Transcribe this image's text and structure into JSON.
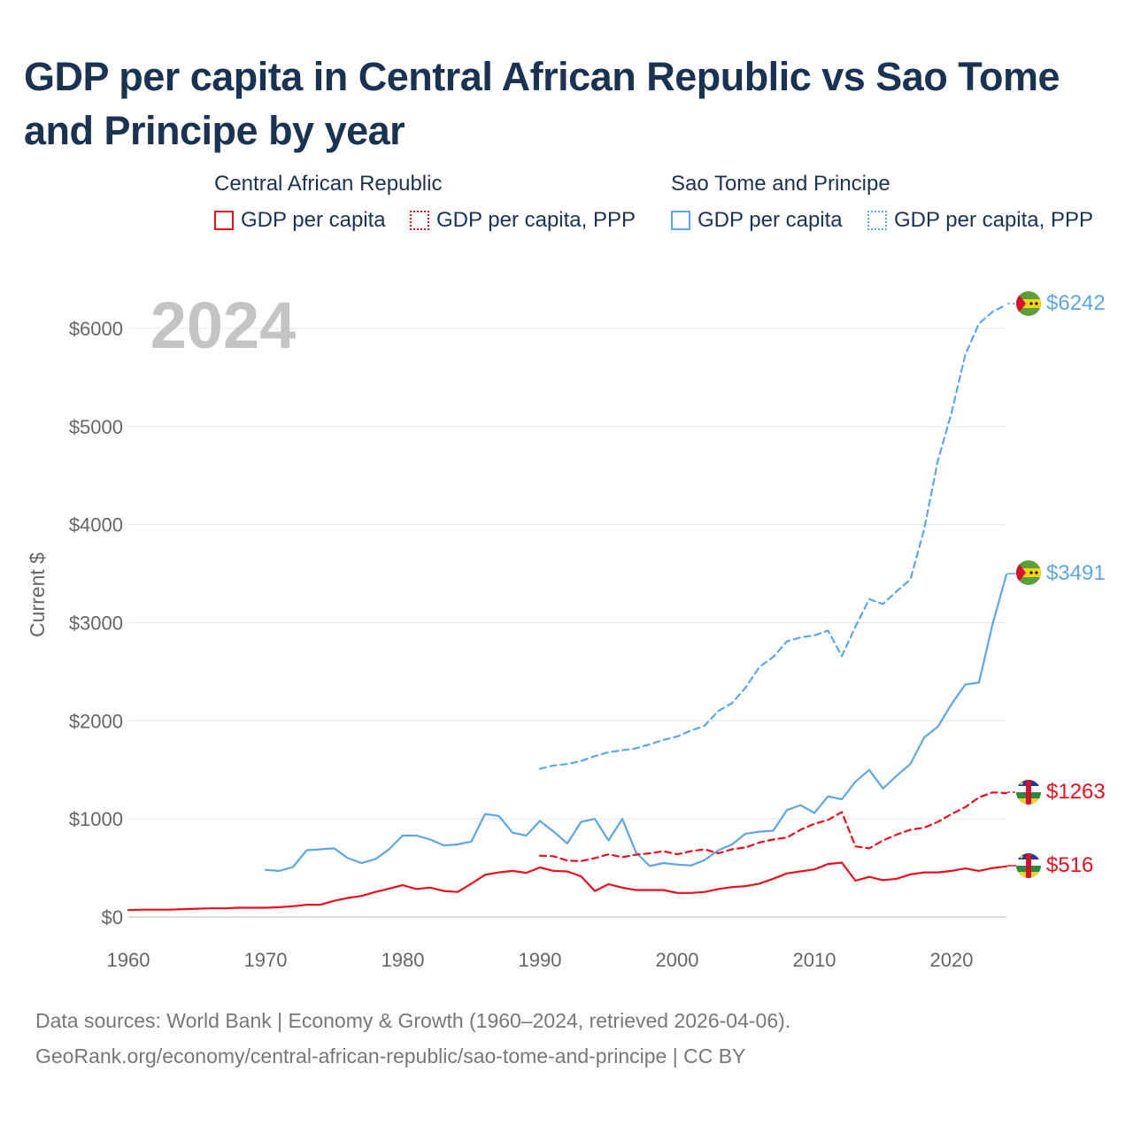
{
  "title": "GDP per capita in Central African Republic vs Sao Tome and Principe by year",
  "legend": {
    "groups": [
      {
        "country": "Central African Republic",
        "color": "#e8101a",
        "items": [
          "GDP per capita",
          "GDP per capita, PPP"
        ]
      },
      {
        "country": "Sao Tome and Principe",
        "color": "#5ea6e6",
        "items": [
          "GDP per capita",
          "GDP per capita, PPP"
        ]
      }
    ]
  },
  "year_watermark": "2024",
  "y_axis_label": "Current $",
  "end_labels": {
    "stp_ppp": "$6242",
    "stp_gdp": "$3491",
    "car_ppp": "$1263",
    "car_gdp": "$516"
  },
  "source": {
    "line1": "Data sources: World Bank | Economy & Growth (1960–2024, retrieved 2026-04-06).",
    "line2": "GeoRank.org/economy/central-african-republic/sao-tome-and-principe | CC BY"
  },
  "chart_data": {
    "type": "line",
    "title": "GDP per capita in Central African Republic vs Sao Tome and Principe by year",
    "xlabel": "",
    "ylabel": "Current $",
    "xlim": [
      1960,
      2024
    ],
    "ylim": [
      0,
      6300
    ],
    "x_ticks": [
      1960,
      1970,
      1980,
      1990,
      2000,
      2010,
      2020
    ],
    "x_tick_labels": [
      "1960",
      "1970",
      "1980",
      "1990",
      "2000",
      "2010",
      "2020"
    ],
    "y_ticks": [
      0,
      1000,
      2000,
      3000,
      4000,
      5000,
      6000
    ],
    "y_tick_labels": [
      "$0",
      "$1000",
      "$2000",
      "$3000",
      "$4000",
      "$5000",
      "$6000"
    ],
    "grid": true,
    "series": [
      {
        "name": "Sao Tome and Principe — GDP per capita, PPP",
        "color": "#5ea6e6",
        "dash": "dashed",
        "start_year": 1990,
        "values": [
          1510,
          1545,
          1560,
          1590,
          1640,
          1680,
          1700,
          1720,
          1760,
          1805,
          1840,
          1900,
          1950,
          2100,
          2180,
          2340,
          2550,
          2650,
          2810,
          2850,
          2870,
          2920,
          2660,
          2960,
          3240,
          3190,
          3320,
          3440,
          3950,
          4650,
          5140,
          5730,
          6050,
          6170,
          6242
        ]
      },
      {
        "name": "Sao Tome and Principe — GDP per capita",
        "color": "#5ea6e6",
        "dash": "solid",
        "start_year": 1970,
        "values": [
          480,
          470,
          510,
          680,
          690,
          700,
          600,
          550,
          590,
          690,
          830,
          830,
          790,
          730,
          740,
          770,
          1050,
          1030,
          860,
          830,
          980,
          870,
          750,
          970,
          1000,
          780,
          1000,
          660,
          520,
          550,
          535,
          525,
          580,
          680,
          740,
          850,
          870,
          880,
          1090,
          1140,
          1060,
          1230,
          1200,
          1380,
          1500,
          1310,
          1440,
          1560,
          1830,
          1940,
          2170,
          2370,
          2390,
          2990,
          3491
        ]
      },
      {
        "name": "Central African Republic — GDP per capita, PPP",
        "color": "#e8101a",
        "dash": "dashed",
        "start_year": 1990,
        "values": [
          625,
          620,
          575,
          570,
          600,
          640,
          610,
          635,
          650,
          670,
          640,
          670,
          690,
          650,
          690,
          710,
          760,
          790,
          810,
          890,
          950,
          990,
          1070,
          720,
          700,
          780,
          840,
          890,
          910,
          970,
          1050,
          1120,
          1220,
          1270,
          1263
        ]
      },
      {
        "name": "Central African Republic — GDP per capita",
        "color": "#e8101a",
        "dash": "solid",
        "start_year": 1960,
        "values": [
          70,
          75,
          75,
          75,
          80,
          85,
          88,
          88,
          95,
          95,
          95,
          100,
          110,
          125,
          125,
          165,
          195,
          215,
          255,
          290,
          325,
          285,
          300,
          265,
          255,
          340,
          430,
          455,
          470,
          450,
          505,
          470,
          465,
          415,
          265,
          335,
          300,
          275,
          275,
          275,
          245,
          245,
          255,
          285,
          305,
          315,
          340,
          390,
          445,
          465,
          485,
          540,
          555,
          370,
          410,
          375,
          390,
          435,
          455,
          455,
          470,
          495,
          470,
          500,
          516
        ]
      }
    ]
  }
}
